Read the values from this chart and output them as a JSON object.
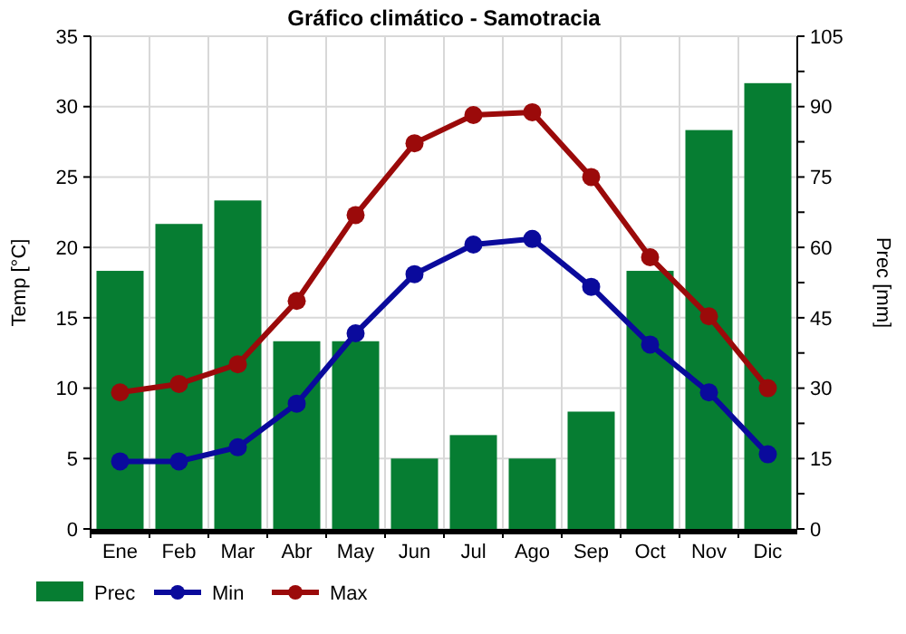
{
  "chart_data": {
    "type": "bar",
    "title": "Gráfico climático - Samotracia",
    "categories": [
      "Ene",
      "Feb",
      "Mar",
      "Abr",
      "May",
      "Jun",
      "Jul",
      "Ago",
      "Sep",
      "Oct",
      "Nov",
      "Dic"
    ],
    "series": [
      {
        "name": "Prec",
        "axis": "y2",
        "color": "#067d32",
        "values": [
          55,
          65,
          70,
          40,
          40,
          15,
          20,
          15,
          25,
          55,
          85,
          95
        ]
      },
      {
        "name": "Min",
        "type": "line",
        "color": "#0a0a9c",
        "values": [
          4.8,
          4.8,
          5.8,
          8.9,
          13.9,
          18.1,
          20.2,
          20.6,
          17.2,
          13.1,
          9.7,
          5.3
        ]
      },
      {
        "name": "Max",
        "type": "line",
        "color": "#9b0a0a",
        "values": [
          9.7,
          10.3,
          11.7,
          16.2,
          22.3,
          27.4,
          29.4,
          29.6,
          25.0,
          19.3,
          15.1,
          10.0
        ]
      }
    ],
    "ylabel": "Temp [°C]",
    "y2label": "Prec [mm]",
    "ylim": [
      0,
      35
    ],
    "yticks": [
      0,
      5,
      10,
      15,
      20,
      25,
      30,
      35
    ],
    "y2lim": [
      0,
      105
    ],
    "y2ticks": [
      0,
      {
        "value": 7.5,
        "label": null
      },
      15,
      {
        "value": 22.5,
        "label": null
      },
      30,
      {
        "value": 37.5,
        "label": null
      },
      45,
      {
        "value": 52.5,
        "label": null
      },
      60,
      {
        "value": 67.5,
        "label": null
      },
      75,
      {
        "value": 82.5,
        "label": null
      },
      90,
      {
        "value": 97.5,
        "label": null
      },
      105
    ],
    "grid": true,
    "legend": "bottom left",
    "marker": "circle",
    "line_style": "solid"
  }
}
